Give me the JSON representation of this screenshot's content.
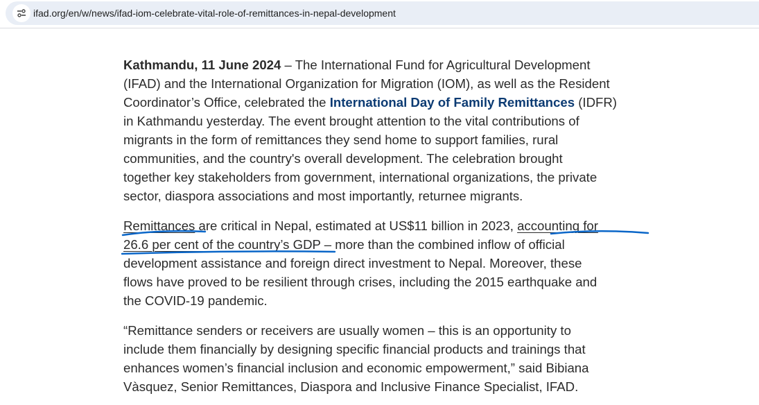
{
  "browser": {
    "url": "ifad.org/en/w/news/ifad-iom-celebrate-vital-role-of-remittances-in-nepal-development",
    "site_icon": "tune-icon"
  },
  "article": {
    "p1": {
      "dateline": "Kathmandu, 11 June 2024",
      "l1": " – The International Fund for Agricultural Development",
      "l2": "(IFAD) and the International Organization for Migration (IOM), as well as the Resident",
      "l3a": "Coordinator’s Office, celebrated the ",
      "l3link": "International Day of Family Remittances",
      "l3b": " (IDFR)",
      "l4": "in Kathmandu yesterday. The event brought attention to the vital contributions of",
      "l5": "migrants in the form of remittances they send home to support families, rural",
      "l6": "communities, and the country's overall development. The celebration brought",
      "l7": "together key stakeholders from government, international organizations, the private",
      "l8": "sector, diaspora associations and most importantly, returnee migrants."
    },
    "p2": {
      "link1": "Remittances",
      "l1a": " are critical in Nepal, estimated at US$11 billion in 2023, ",
      "link2a": "accounting for",
      "link2b": "26.6 per cent of the country’s GDP",
      "l2b": " – more than the combined inflow of official",
      "l3": "development assistance and foreign direct investment to Nepal. Moreover, these",
      "l4": "flows have proved to be resilient through crises, including the 2015 earthquake and",
      "l5": "the COVID-19 pandemic."
    },
    "p3": {
      "l1": "“Remittance senders or receivers are usually women – this is an opportunity to",
      "l2": "include them financially by designing specific financial products and trainings that",
      "l3": "enhances women’s financial inclusion and economic empowerment,” said Bibiana",
      "l4": "Vàsquez, Senior Remittances, Diaspora and Inclusive Finance Specialist, IFAD."
    }
  },
  "colors": {
    "link_strong": "#0c3b73",
    "annotation": "#0a66c8",
    "text": "#2b2b2b"
  }
}
